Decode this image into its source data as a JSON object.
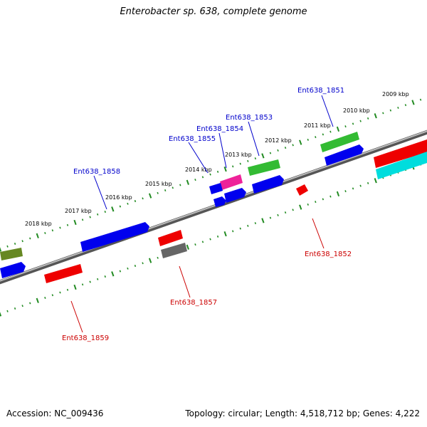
{
  "title": "Enterobacter sp. 638, complete genome",
  "footer": {
    "accession": "Accession: NC_009436",
    "summary": "Topology: circular; Length: 4,518,712 bp; Genes: 4,222"
  },
  "colors": {
    "blue": "#0000ee",
    "red": "#ee0000",
    "green": "#33bb33",
    "olive": "#668822",
    "magenta": "#ee2299",
    "gray": "#666666",
    "cyan": "#00dddd",
    "backbone": "#888888",
    "tick": "#228b22",
    "label_plus": "#0000cc",
    "label_minus": "#cc0000"
  },
  "scale_labels": [
    "2009 kbp",
    "2010 kbp",
    "2011 kbp",
    "2012 kbp",
    "2013 kbp",
    "2014 kbp",
    "2015 kbp",
    "2016 kbp",
    "2017 kbp",
    "2018 kbp"
  ],
  "gene_labels": {
    "plus": [
      "Ent638_1851",
      "Ent638_1853",
      "Ent638_1854",
      "Ent638_1855",
      "Ent638_1858"
    ],
    "minus": [
      "Ent638_1852",
      "Ent638_1857",
      "Ent638_1859"
    ]
  }
}
